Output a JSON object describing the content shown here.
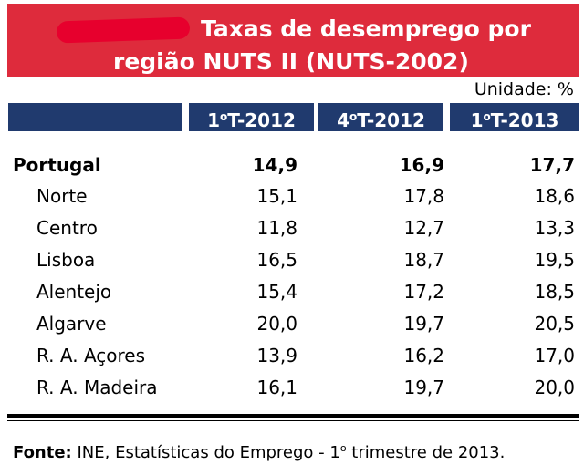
{
  "title": {
    "line1": "Taxas de desemprego por",
    "line2": "região NUTS II (NUTS-2002)"
  },
  "unit": "Unidade: %",
  "columns": [
    {
      "base": "1",
      "sup": "o",
      "rest": "T-2012"
    },
    {
      "base": "4",
      "sup": "o",
      "rest": "T-2012"
    },
    {
      "base": "1",
      "sup": "o",
      "rest": "T-2013"
    }
  ],
  "rows": [
    {
      "label": "Portugal",
      "values": [
        "14,9",
        "16,9",
        "17,7"
      ]
    },
    {
      "label": "Norte",
      "values": [
        "15,1",
        "17,8",
        "18,6"
      ]
    },
    {
      "label": "Centro",
      "values": [
        "11,8",
        "12,7",
        "13,3"
      ]
    },
    {
      "label": "Lisboa",
      "values": [
        "16,5",
        "18,7",
        "19,5"
      ]
    },
    {
      "label": "Alentejo",
      "values": [
        "15,4",
        "17,2",
        "18,5"
      ]
    },
    {
      "label": "Algarve",
      "values": [
        "20,0",
        "19,7",
        "20,5"
      ]
    },
    {
      "label": "R. A. Açores",
      "values": [
        "13,9",
        "16,2",
        "17,0"
      ]
    },
    {
      "label": "R. A. Madeira",
      "values": [
        "16,1",
        "19,7",
        "20,0"
      ]
    }
  ],
  "source": {
    "key": "Fonte:",
    "text_a": " INE, Estatísticas do Emprego - 1",
    "sup": "o",
    "text_b": " trimestre de 2013."
  },
  "colors": {
    "title_bg": "#de2b3c",
    "header_bg": "#203a6e"
  }
}
